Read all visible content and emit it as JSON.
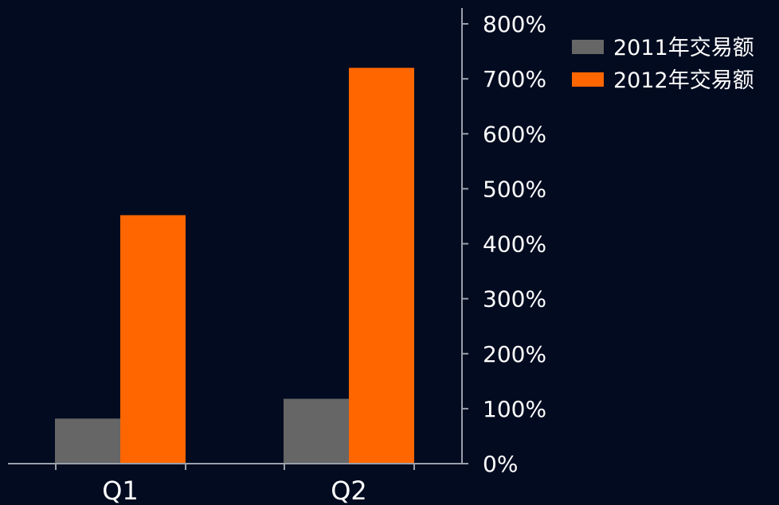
{
  "theme": {
    "background": "#020b20",
    "axis_color": "#9aa0ab",
    "text_color": "#ffffff",
    "series_colors": [
      "#666666",
      "#ff6600"
    ]
  },
  "chart_data": {
    "type": "bar",
    "categories": [
      "Q1",
      "Q2"
    ],
    "series": [
      {
        "name": "2011年交易额",
        "values": [
          82,
          118
        ]
      },
      {
        "name": "2012年交易额",
        "values": [
          452,
          720
        ]
      }
    ],
    "y_axis": {
      "position": "right",
      "ticks": [
        0,
        100,
        200,
        300,
        400,
        500,
        600,
        700,
        800
      ],
      "tick_labels": [
        "0%",
        "100%",
        "200%",
        "300%",
        "400%",
        "500%",
        "600%",
        "700%",
        "800%"
      ]
    },
    "ylim": [
      0,
      800
    ],
    "legend_position": "top-right",
    "grid": false
  }
}
